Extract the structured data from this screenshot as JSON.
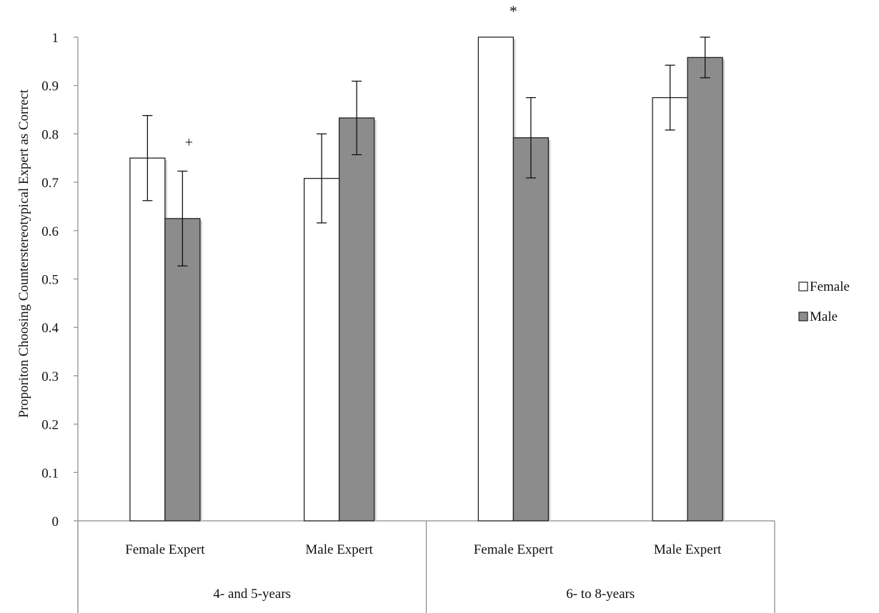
{
  "chart_data": {
    "type": "bar",
    "title": "",
    "xlabel": "",
    "ylabel": "Proporiton Choosing Counterstereotypical  Expert as Correct",
    "ylim": [
      0,
      1
    ],
    "yticks": [
      "0",
      "0.1",
      "0.2",
      "0.3",
      "0.4",
      "0.5",
      "0.6",
      "0.7",
      "0.8",
      "0.9",
      "1"
    ],
    "grid": false,
    "legend_position": "right",
    "groups": [
      {
        "label": "4- and 5-years",
        "categories": [
          "Female Expert",
          "Male Expert"
        ]
      },
      {
        "label": "6- to 8-years",
        "categories": [
          "Female Expert",
          "Male Expert"
        ]
      }
    ],
    "categories": [
      "Female Expert",
      "Male Expert",
      "Female Expert",
      "Male Expert"
    ],
    "series": [
      {
        "name": "Female",
        "color": "#ffffff",
        "values": [
          0.75,
          0.708,
          1.0,
          0.875
        ],
        "error": [
          0.088,
          0.092,
          null,
          0.067
        ]
      },
      {
        "name": "Male",
        "color": "#8c8c8c",
        "values": [
          0.625,
          0.833,
          0.792,
          0.958
        ],
        "error": [
          0.098,
          0.076,
          0.083,
          0.042
        ]
      }
    ],
    "annotations": [
      {
        "text": "+",
        "category_index": 0,
        "series": "Male"
      },
      {
        "text": "*",
        "category_index": 2,
        "series": "between"
      }
    ]
  }
}
